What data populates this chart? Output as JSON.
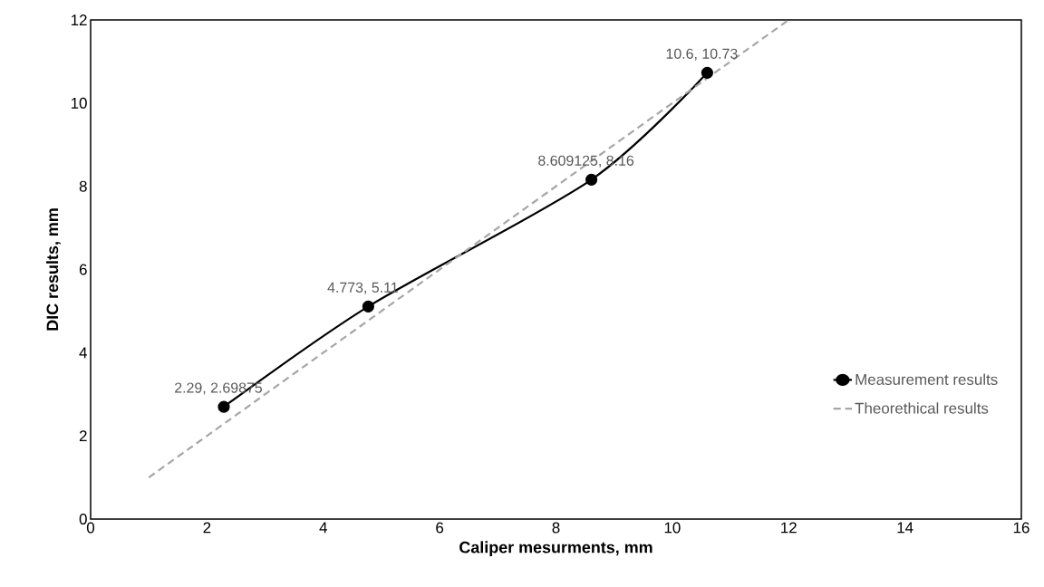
{
  "chart_data": {
    "type": "line",
    "xlabel": "Caliper mesurments, mm",
    "ylabel": "DIC results, mm",
    "series": [
      {
        "name": "Measurement results",
        "color": "#000000",
        "marker": "circle",
        "line_style": "solid",
        "x": [
          2.29,
          4.773,
          8.609125,
          10.6
        ],
        "values": [
          2.69875,
          5.11,
          8.16,
          10.73
        ],
        "value_labels": [
          "2.29, 2.69875",
          "4.773, 5.11",
          "8.609125, 8.16",
          "10.6, 10.73"
        ]
      },
      {
        "name": "Theorethical results",
        "color": "#a6a6a6",
        "marker": "none",
        "line_style": "dashed",
        "x": [
          1,
          12
        ],
        "values": [
          1,
          12
        ]
      }
    ],
    "xlim": [
      0,
      16
    ],
    "ylim": [
      0,
      12
    ],
    "xticks": [
      0,
      2,
      4,
      6,
      8,
      10,
      12,
      14,
      16
    ],
    "yticks": [
      0,
      2,
      4,
      6,
      8,
      10,
      12
    ],
    "grid": false,
    "legend": "right"
  }
}
